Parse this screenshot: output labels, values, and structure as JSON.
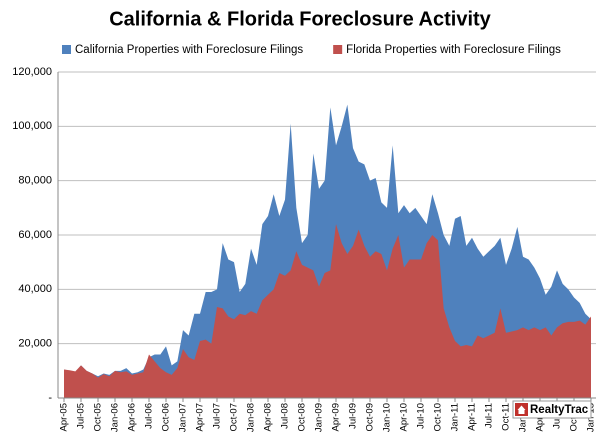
{
  "chart_data": {
    "type": "area",
    "title": "California & Florida Foreclosure Activity",
    "watermark": "RealtyTrac",
    "categories": [
      "Apr-05",
      null,
      null,
      "Jul-05",
      null,
      null,
      "Oct-05",
      null,
      null,
      "Jan-06",
      null,
      null,
      "Apr-06",
      null,
      null,
      "Jul-06",
      null,
      null,
      "Oct-06",
      null,
      null,
      "Jan-07",
      null,
      null,
      "Apr-07",
      null,
      null,
      "Jul-07",
      null,
      null,
      "Oct-07",
      null,
      null,
      "Jan-08",
      null,
      null,
      "Apr-08",
      null,
      null,
      "Jul-08",
      null,
      null,
      "Oct-08",
      null,
      null,
      "Jan-09",
      null,
      null,
      "Apr-09",
      null,
      null,
      "Jul-09",
      null,
      null,
      "Oct-09",
      null,
      null,
      "Jan-10",
      null,
      null,
      "Apr-10",
      null,
      null,
      "Jul-10",
      null,
      null,
      "Oct-10",
      null,
      null,
      "Jan-11",
      null,
      null,
      "Apr-11",
      null,
      null,
      "Jul-11",
      null,
      null,
      "Oct-11",
      null,
      null,
      "Jan-12",
      null,
      null,
      "Apr-12",
      null,
      null,
      "Jul-12",
      null,
      null,
      "Oct-12",
      null,
      null,
      "Jan-13"
    ],
    "series": [
      {
        "name": "California Properties with Foreclosure Filings",
        "color": "#4f81bd",
        "values": [
          10500,
          10000,
          9500,
          12000,
          10000,
          9000,
          8000,
          9000,
          8500,
          10000,
          10000,
          11000,
          9000,
          9500,
          10500,
          15000,
          16000,
          16000,
          19000,
          12000,
          13500,
          25000,
          23000,
          31000,
          31000,
          39000,
          39000,
          40000,
          57000,
          51000,
          50000,
          39000,
          42000,
          55000,
          49000,
          64000,
          67000,
          75000,
          67000,
          73000,
          101000,
          70000,
          57000,
          60000,
          90000,
          77000,
          80000,
          107000,
          93000,
          100000,
          108000,
          92000,
          87000,
          86000,
          80000,
          81000,
          72000,
          70000,
          93000,
          68000,
          71000,
          68000,
          70000,
          67000,
          64000,
          75000,
          68000,
          60000,
          56000,
          66000,
          67000,
          56000,
          59000,
          55000,
          52000,
          54000,
          56000,
          59000,
          49000,
          55000,
          63000,
          52000,
          51000,
          48000,
          44000,
          38000,
          41000,
          47000,
          42000,
          40000,
          37000,
          35000,
          31000,
          29000
        ]
      },
      {
        "name": "Florida Properties with Foreclosure Filings",
        "color": "#c0504d",
        "values": [
          10500,
          10200,
          9800,
          12000,
          10000,
          9000,
          7500,
          8800,
          8000,
          10000,
          9500,
          9800,
          8500,
          9000,
          9500,
          16000,
          13500,
          11000,
          9500,
          8500,
          11000,
          18000,
          15000,
          14000,
          21000,
          21500,
          20000,
          33500,
          33000,
          30000,
          29000,
          31000,
          30500,
          32000,
          31000,
          36000,
          38000,
          40000,
          46000,
          45000,
          47000,
          54000,
          49000,
          48000,
          47000,
          41000,
          46000,
          47000,
          64000,
          57000,
          53000,
          56000,
          62000,
          56000,
          52000,
          54000,
          53000,
          47000,
          55000,
          60000,
          48000,
          51000,
          51000,
          51000,
          57000,
          60000,
          58000,
          33000,
          26000,
          21000,
          19000,
          19500,
          19000,
          23000,
          22000,
          23000,
          24000,
          33000,
          24000,
          24500,
          25000,
          26000,
          25000,
          26000,
          25000,
          26000,
          23000,
          26000,
          27500,
          28000,
          28000,
          28500,
          27000,
          30000
        ]
      }
    ],
    "ylim": [
      0,
      120000
    ],
    "yticks": [
      {
        "value": 0,
        "label": "-"
      },
      {
        "value": 20000,
        "label": "20,000"
      },
      {
        "value": 40000,
        "label": "40,000"
      },
      {
        "value": 60000,
        "label": "60,000"
      },
      {
        "value": 80000,
        "label": "80,000"
      },
      {
        "value": 100000,
        "label": "100,000"
      },
      {
        "value": 120000,
        "label": "120,000"
      }
    ],
    "grid": true
  }
}
